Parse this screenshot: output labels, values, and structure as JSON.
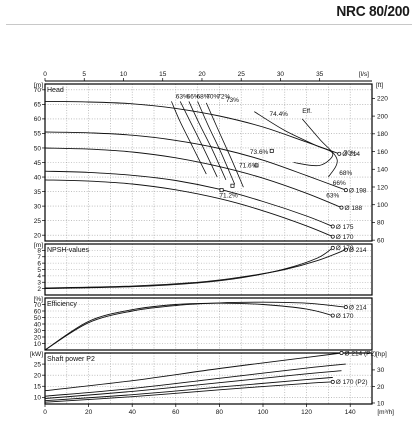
{
  "header": {
    "model": "NRC 80/200"
  },
  "chart_data": [
    {
      "type": "line",
      "title": "Head",
      "top_axis_unit": "[l/s]",
      "top_axis_ticks": [
        0,
        5,
        10,
        15,
        20,
        25,
        30,
        35
      ],
      "left_unit": "[m]",
      "right_unit": "[ft]",
      "ylim": [
        18,
        72
      ],
      "yticks_left": [
        20,
        25,
        30,
        35,
        40,
        45,
        50,
        55,
        60,
        65,
        70
      ],
      "yticks_right": [
        60,
        80,
        100,
        120,
        140,
        160,
        180,
        200,
        220,
        240
      ],
      "xlim": [
        0,
        150
      ],
      "series": [
        {
          "name": "Ø 214",
          "x": [
            0,
            20,
            40,
            60,
            80,
            100,
            120,
            135
          ],
          "y": [
            66,
            65.8,
            65.2,
            63.6,
            61,
            57.2,
            52,
            48
          ]
        },
        {
          "name": "Ø 198",
          "x": [
            0,
            20,
            40,
            60,
            80,
            100,
            120,
            138
          ],
          "y": [
            55.5,
            55.2,
            54.4,
            52.6,
            49.8,
            45.8,
            40.5,
            35.5
          ]
        },
        {
          "name": "Ø 188",
          "x": [
            0,
            20,
            40,
            60,
            80,
            100,
            120,
            136
          ],
          "y": [
            50,
            49.6,
            48.6,
            46.6,
            43.6,
            39.6,
            34.4,
            29.5
          ]
        },
        {
          "name": "Ø 175",
          "x": [
            0,
            20,
            40,
            60,
            80,
            100,
            120,
            132
          ],
          "y": [
            42,
            41.6,
            40.6,
            38.8,
            35.8,
            31.6,
            26.6,
            23
          ]
        },
        {
          "name": "Ø 170",
          "x": [
            0,
            20,
            40,
            60,
            80,
            100,
            120,
            132
          ],
          "y": [
            39,
            38.6,
            37.6,
            35.6,
            32.6,
            28.4,
            23.2,
            19.5
          ]
        }
      ],
      "efficiency_labels": [
        "63%",
        "66%",
        "68%",
        "70%",
        "72%",
        "73%",
        "74.4%",
        "Eff.",
        "73.6%",
        "71.6%",
        "71.2%",
        "70%",
        "68%",
        "66%",
        "63%"
      ]
    },
    {
      "type": "line",
      "title": "NPSH-values",
      "left_unit": "[m]",
      "ylim": [
        1,
        9
      ],
      "yticks_left": [
        2,
        3,
        4,
        5,
        6,
        7,
        8
      ],
      "xlim": [
        0,
        150
      ],
      "series": [
        {
          "name": "Ø 214",
          "x": [
            0,
            40,
            70,
            90,
            110,
            125,
            138
          ],
          "y": [
            2.1,
            2.4,
            3.0,
            3.8,
            5.0,
            6.4,
            8.1
          ]
        },
        {
          "name": "Ø 170",
          "x": [
            0,
            40,
            70,
            90,
            110,
            125,
            132
          ],
          "y": [
            2.0,
            2.3,
            2.9,
            3.7,
            5.1,
            6.8,
            8.4
          ]
        }
      ]
    },
    {
      "type": "line",
      "title": "Efficiency",
      "left_unit": "[%]",
      "ylim": [
        0,
        80
      ],
      "yticks_left": [
        10,
        20,
        30,
        40,
        50,
        60,
        70
      ],
      "xlim": [
        0,
        150
      ],
      "series": [
        {
          "name": "Ø 214",
          "x": [
            0,
            20,
            40,
            60,
            80,
            100,
            120,
            138
          ],
          "y": [
            0,
            42,
            60,
            68.5,
            72.5,
            73.5,
            72,
            66
          ]
        },
        {
          "name": "Ø 170",
          "x": [
            0,
            20,
            40,
            60,
            80,
            100,
            120,
            132
          ],
          "y": [
            0,
            44,
            62,
            70,
            72,
            70,
            63,
            53
          ]
        }
      ]
    },
    {
      "type": "line",
      "title": "Shaft power P2",
      "left_unit": "[kW]",
      "right_unit": "[hp]",
      "xlabel": "[m³/h]",
      "xticks": [
        0,
        20,
        40,
        60,
        80,
        100,
        120,
        140
      ],
      "xlim": [
        0,
        150
      ],
      "ylim": [
        7,
        30
      ],
      "yticks_left": [
        10,
        15,
        20,
        25
      ],
      "yticks_right": [
        10,
        20,
        30
      ],
      "series": [
        {
          "name": "Ø 214 (P2)",
          "x": [
            0,
            40,
            80,
            120,
            136
          ],
          "y": [
            13,
            17.5,
            23,
            28,
            30
          ]
        },
        {
          "name": "Ø 198",
          "x": [
            0,
            40,
            80,
            120,
            138
          ],
          "y": [
            10.5,
            14,
            18.6,
            23.2,
            25
          ]
        },
        {
          "name": "Ø 188",
          "x": [
            0,
            40,
            80,
            120,
            136
          ],
          "y": [
            9.5,
            12.7,
            16.6,
            20.6,
            22
          ]
        },
        {
          "name": "Ø 175",
          "x": [
            0,
            40,
            80,
            120,
            132
          ],
          "y": [
            8.5,
            11.2,
            14.6,
            18,
            19
          ]
        },
        {
          "name": "Ø 170 (P2)",
          "x": [
            0,
            40,
            80,
            120,
            132
          ],
          "y": [
            7.8,
            10.3,
            13.4,
            16.3,
            17
          ]
        }
      ]
    }
  ]
}
